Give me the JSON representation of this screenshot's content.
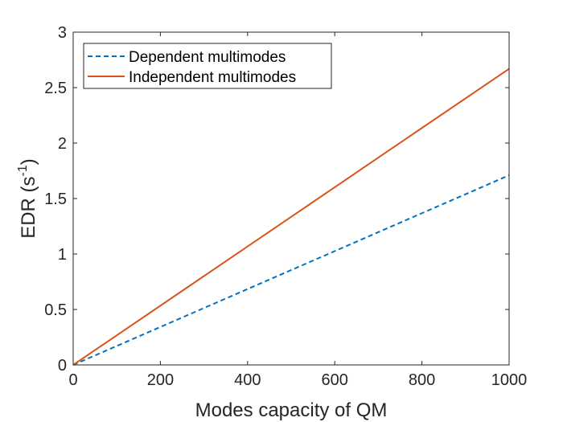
{
  "chart_data": {
    "type": "line",
    "title": "",
    "xlabel": "Modes capacity of QM",
    "ylabel_main": "EDR (s",
    "ylabel_sup": "-1",
    "ylabel_close": ")",
    "xlim": [
      0,
      1000
    ],
    "ylim": [
      0,
      3
    ],
    "xticks": [
      0,
      200,
      400,
      600,
      800,
      1000
    ],
    "yticks": [
      0,
      0.5,
      1,
      1.5,
      2,
      2.5,
      3
    ],
    "xtick_labels": [
      "0",
      "200",
      "400",
      "600",
      "800",
      "1000"
    ],
    "ytick_labels": [
      "0",
      "0.5",
      "1",
      "1.5",
      "2",
      "2.5",
      "3"
    ],
    "grid": false,
    "legend_position": "top-left",
    "series": [
      {
        "name": "Dependent multimodes",
        "style": "dashed",
        "color": "#0072BD",
        "x": [
          0,
          1000
        ],
        "y": [
          0,
          1.71
        ]
      },
      {
        "name": "Independent multimodes",
        "style": "solid",
        "color": "#D95319",
        "x": [
          0,
          1000
        ],
        "y": [
          0,
          2.67
        ]
      }
    ]
  }
}
